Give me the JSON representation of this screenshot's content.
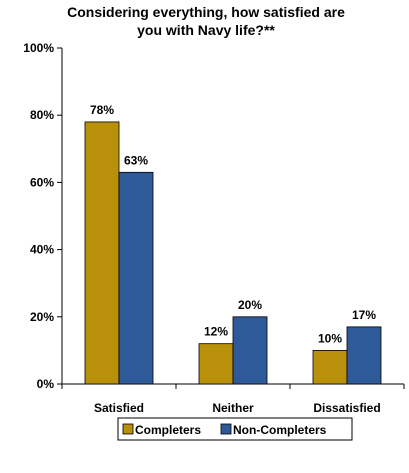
{
  "chart_data": {
    "type": "bar",
    "title_lines": [
      "Considering everything, how satisfied are",
      "you with Navy life?**"
    ],
    "categories": [
      "Satisfied",
      "Neither",
      "Dissatisfied"
    ],
    "series": [
      {
        "name": "Completers",
        "values": [
          78,
          12,
          10
        ],
        "labels": [
          "78%",
          "12%",
          "10%"
        ],
        "color": "#B8900A"
      },
      {
        "name": "Non-Completers",
        "values": [
          63,
          20,
          17
        ],
        "labels": [
          "63%",
          "20%",
          "17%"
        ],
        "color": "#2E5A9A"
      }
    ],
    "ylim": [
      0,
      100
    ],
    "yticks": [
      0,
      20,
      40,
      60,
      80,
      100
    ],
    "ytick_labels": [
      "0%",
      "20%",
      "40%",
      "60%",
      "80%",
      "100%"
    ],
    "grid": false,
    "legend_position": "bottom"
  }
}
